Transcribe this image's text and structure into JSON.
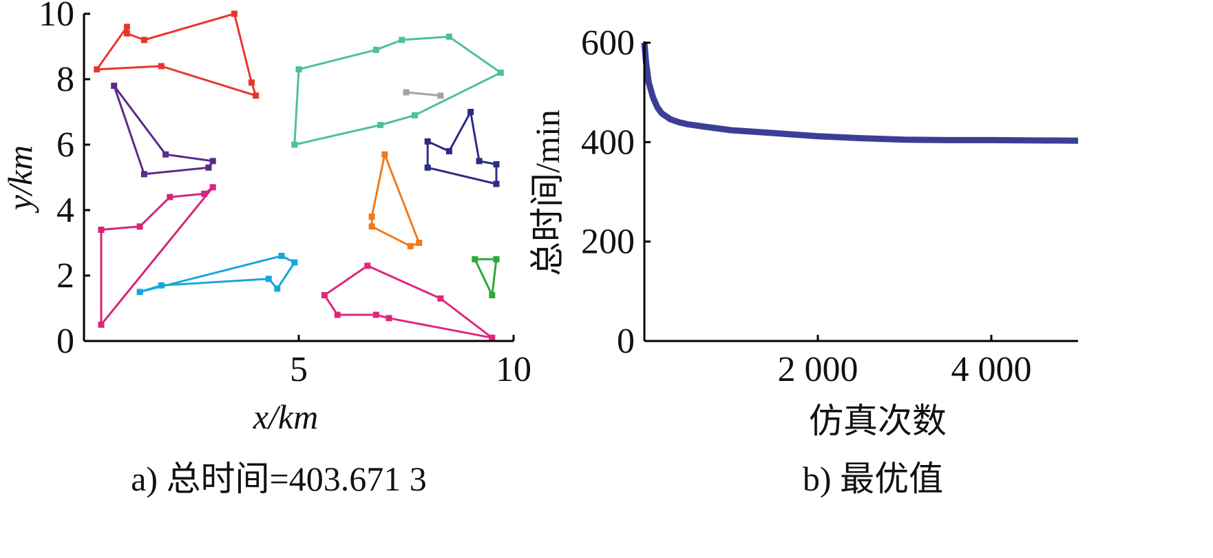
{
  "chart_data": [
    {
      "type": "line",
      "panel": "a",
      "caption": "a) 总时间=403.671 3",
      "xlabel": "x/km",
      "ylabel": "y/km",
      "xlim": [
        0,
        10
      ],
      "ylim": [
        0,
        10
      ],
      "xticks": [
        "5",
        "10"
      ],
      "yticks": [
        "0",
        "2",
        "4",
        "6",
        "8",
        "10"
      ],
      "grid": false,
      "series": [
        {
          "color": "#e8362e",
          "points": [
            [
              0.3,
              8.3
            ],
            [
              1.8,
              8.4
            ],
            [
              4.0,
              7.5
            ],
            [
              3.9,
              7.9
            ],
            [
              3.5,
              10.0
            ],
            [
              1.4,
              9.2
            ],
            [
              1.0,
              9.4
            ],
            [
              1.0,
              9.6
            ],
            [
              0.3,
              8.3
            ]
          ]
        },
        {
          "color": "#5b2a8a",
          "points": [
            [
              0.7,
              7.8
            ],
            [
              1.4,
              5.1
            ],
            [
              2.9,
              5.3
            ],
            [
              3.0,
              5.5
            ],
            [
              1.9,
              5.7
            ],
            [
              0.7,
              7.8
            ]
          ]
        },
        {
          "color": "#d6257a",
          "points": [
            [
              0.4,
              3.4
            ],
            [
              1.3,
              3.5
            ],
            [
              2.0,
              4.4
            ],
            [
              2.8,
              4.5
            ],
            [
              3.0,
              4.7
            ],
            [
              0.4,
              0.5
            ],
            [
              0.4,
              3.4
            ]
          ]
        },
        {
          "color": "#17a6dc",
          "points": [
            [
              1.3,
              1.5
            ],
            [
              1.8,
              1.7
            ],
            [
              4.3,
              1.9
            ],
            [
              4.5,
              1.6
            ],
            [
              4.9,
              2.4
            ],
            [
              4.6,
              2.6
            ],
            [
              1.3,
              1.5
            ]
          ]
        },
        {
          "color": "#4fbf9e",
          "points": [
            [
              5.0,
              8.3
            ],
            [
              6.8,
              8.9
            ],
            [
              7.4,
              9.2
            ],
            [
              8.5,
              9.3
            ],
            [
              9.7,
              8.2
            ],
            [
              7.7,
              6.9
            ],
            [
              6.9,
              6.6
            ],
            [
              4.9,
              6.0
            ],
            [
              5.0,
              8.3
            ]
          ]
        },
        {
          "color": "#a3a3a3",
          "points": [
            [
              7.5,
              7.6
            ],
            [
              8.3,
              7.5
            ]
          ]
        },
        {
          "color": "#2c2c86",
          "points": [
            [
              8.0,
              6.1
            ],
            [
              8.5,
              5.8
            ],
            [
              9.0,
              7.0
            ],
            [
              9.2,
              5.5
            ],
            [
              9.6,
              5.4
            ],
            [
              9.6,
              4.8
            ],
            [
              8.0,
              5.3
            ],
            [
              8.0,
              6.1
            ]
          ]
        },
        {
          "color": "#f07a1a",
          "points": [
            [
              7.0,
              5.7
            ],
            [
              7.8,
              3.0
            ],
            [
              7.6,
              2.9
            ],
            [
              6.7,
              3.5
            ],
            [
              6.7,
              3.8
            ],
            [
              7.0,
              5.7
            ]
          ]
        },
        {
          "color": "#2ea836",
          "points": [
            [
              9.1,
              2.5
            ],
            [
              9.6,
              2.5
            ],
            [
              9.5,
              1.4
            ],
            [
              9.1,
              2.5
            ]
          ]
        },
        {
          "color": "#e0267c",
          "points": [
            [
              5.6,
              1.4
            ],
            [
              5.9,
              0.8
            ],
            [
              6.8,
              0.8
            ],
            [
              7.1,
              0.7
            ],
            [
              9.5,
              0.1
            ],
            [
              8.3,
              1.3
            ],
            [
              6.6,
              2.3
            ],
            [
              5.6,
              1.4
            ]
          ]
        }
      ]
    },
    {
      "type": "line",
      "panel": "b",
      "caption": "b) 最优值",
      "xlabel": "仿真次数",
      "ylabel": "总时间/min",
      "xlim": [
        0,
        5000
      ],
      "ylim": [
        0,
        600
      ],
      "xticks": [
        "2 000",
        "4 000"
      ],
      "yticks": [
        "0",
        "200",
        "400",
        "600"
      ],
      "grid": false,
      "series": [
        {
          "color": "#3a3f95",
          "points": [
            [
              0,
              600
            ],
            [
              20,
              560
            ],
            [
              50,
              520
            ],
            [
              100,
              490
            ],
            [
              150,
              470
            ],
            [
              200,
              458
            ],
            [
              300,
              446
            ],
            [
              400,
              440
            ],
            [
              500,
              436
            ],
            [
              700,
              431
            ],
            [
              1000,
              424
            ],
            [
              1500,
              418
            ],
            [
              2000,
              412
            ],
            [
              2500,
              408
            ],
            [
              3000,
              405
            ],
            [
              3500,
              404
            ],
            [
              4000,
              404
            ],
            [
              5000,
              403
            ]
          ]
        }
      ]
    }
  ]
}
